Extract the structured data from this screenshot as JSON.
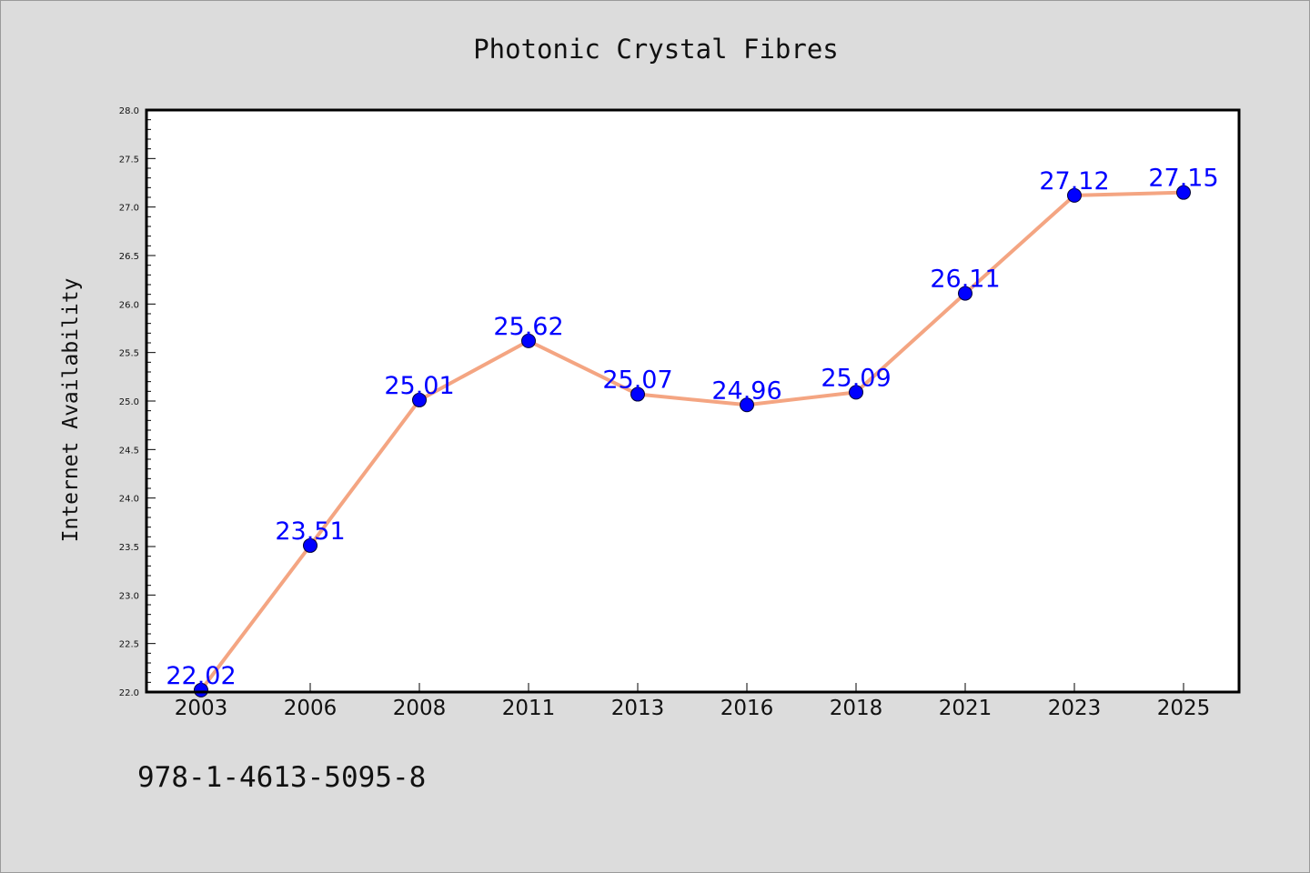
{
  "chart_data": {
    "type": "line",
    "title": "Photonic Crystal Fibres",
    "xlabel": "",
    "ylabel": "Internet Availability",
    "categories": [
      "2003",
      "2006",
      "2008",
      "2011",
      "2013",
      "2016",
      "2018",
      "2021",
      "2023",
      "2025"
    ],
    "series": [
      {
        "values": [
          22.02,
          23.51,
          25.01,
          25.62,
          25.07,
          24.96,
          25.09,
          26.11,
          27.12,
          27.15
        ],
        "labels": [
          "22.02",
          "23.51",
          "25.01",
          "25.62",
          "25.07",
          "24.96",
          "25.09",
          "26.11",
          "27.12",
          "27.15"
        ],
        "line_color": "#f4a582",
        "marker_color": "#0000ff"
      }
    ],
    "ylim": [
      22.0,
      28.0
    ],
    "yticks": [
      "22.0",
      "22.5",
      "23.0",
      "23.5",
      "24.0",
      "24.5",
      "25.0",
      "25.5",
      "26.0",
      "26.5",
      "27.0",
      "27.5",
      "28.0"
    ],
    "grid": false,
    "legend": "none"
  },
  "footer_text": "978-1-4613-5095-8",
  "colors": {
    "background": "#dcdcdc",
    "plot_background": "#ffffff",
    "line": "#f4a582",
    "marker": "#0000ff",
    "data_label": "#0000ff"
  }
}
